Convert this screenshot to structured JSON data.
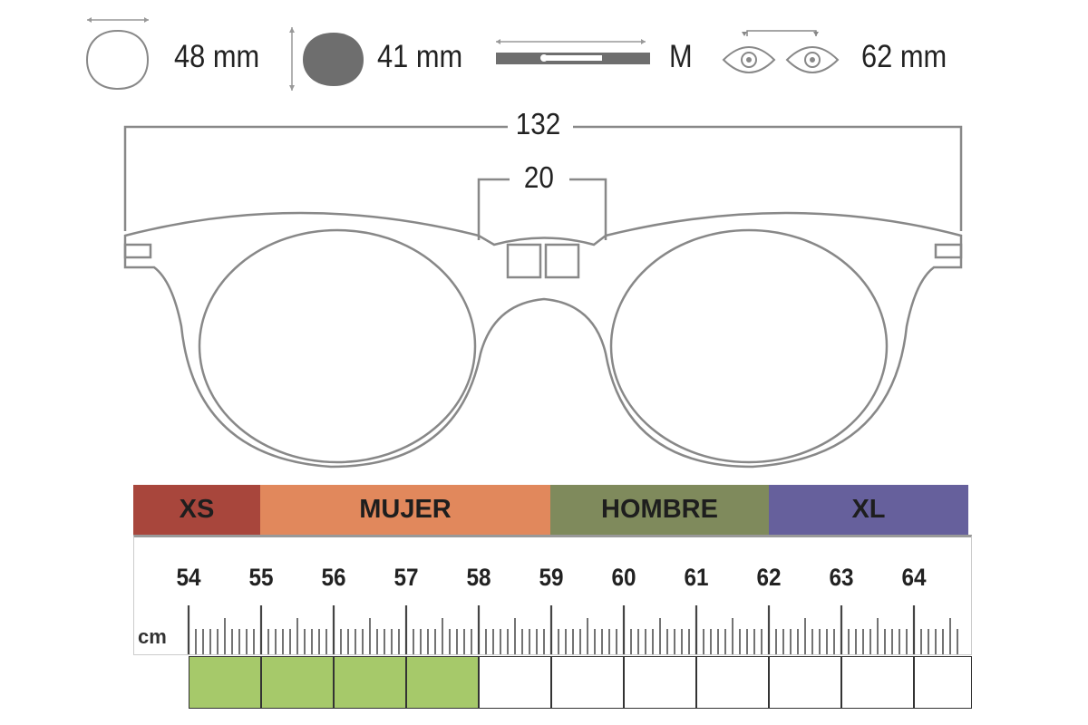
{
  "specs": {
    "lens_width": "48 mm",
    "lens_height": "41 mm",
    "temple_size": "M",
    "pupil_distance": "62 mm"
  },
  "diagram": {
    "total_width": "132",
    "bridge_width": "20"
  },
  "size_bands": [
    {
      "label": "XS",
      "color": "#a8463c"
    },
    {
      "label": "MUJER",
      "color": "#e1885c"
    },
    {
      "label": "HOMBRE",
      "color": "#7f8a5c"
    },
    {
      "label": "XL",
      "color": "#66609c"
    }
  ],
  "ruler": {
    "unit": "cm",
    "labels": [
      "54",
      "55",
      "56",
      "57",
      "58",
      "59",
      "60",
      "61",
      "62",
      "63",
      "64"
    ],
    "highlighted_cells": 4,
    "highlight_color": "#a6c96a"
  }
}
